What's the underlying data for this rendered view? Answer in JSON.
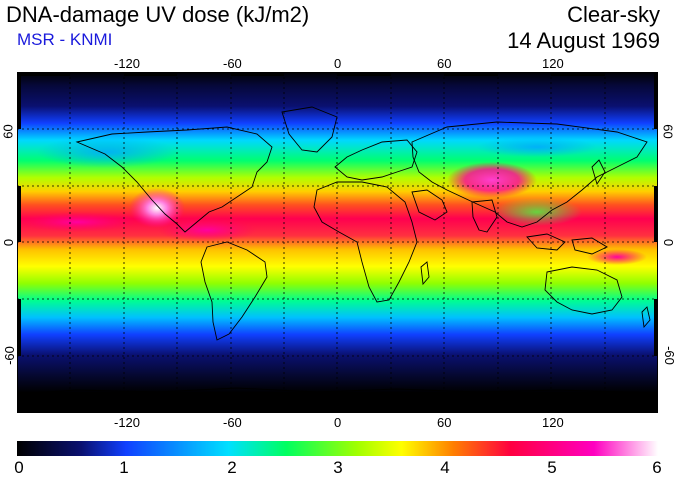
{
  "header": {
    "title": "DNA-damage UV dose (kJ/m2)",
    "subtitle": "MSR - KNMI",
    "condition": "Clear-sky",
    "date": "14 August 1969"
  },
  "map": {
    "lon_ticks": [
      "-120",
      "-60",
      "0",
      "60",
      "120"
    ],
    "lat_ticks": [
      "60",
      "0",
      "-60"
    ],
    "lon_range": [
      -180,
      180
    ],
    "lat_range": [
      -90,
      90
    ],
    "grid_spacing_deg": 30,
    "grid": "dotted"
  },
  "colorbar": {
    "labels": [
      "0",
      "1",
      "2",
      "3",
      "4",
      "5",
      "6"
    ],
    "range": [
      0,
      6
    ],
    "colors": [
      "#000000",
      "#0a1070",
      "#1040ff",
      "#00e0ff",
      "#00ff60",
      "#a0ff00",
      "#ffff00",
      "#ff8000",
      "#ff0040",
      "#ff00c0",
      "#ffffff"
    ]
  }
}
